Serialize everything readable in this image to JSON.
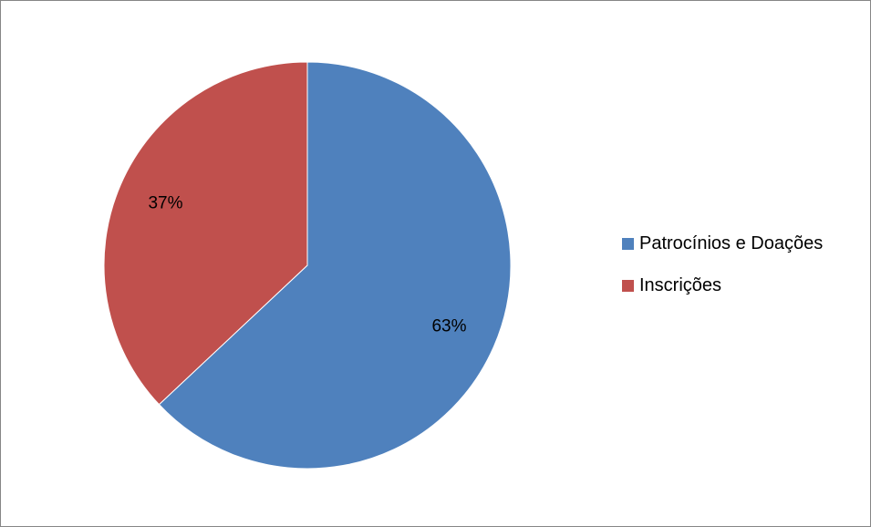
{
  "chart_data": {
    "type": "pie",
    "title": "",
    "categories": [
      "Patrocínios e Doações",
      "Inscrições"
    ],
    "values": [
      63,
      37
    ],
    "data_labels": [
      "63%",
      "37%"
    ],
    "colors": [
      "#4F81BD",
      "#C0504D"
    ],
    "start_angle": "12 o'clock",
    "direction": "clockwise",
    "legend_position": "right"
  },
  "legend": {
    "items": [
      {
        "label": "Patrocínios e Doações",
        "color": "#4F81BD"
      },
      {
        "label": "Inscrições",
        "color": "#C0504D"
      }
    ]
  }
}
